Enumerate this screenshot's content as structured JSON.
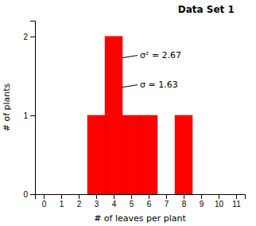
{
  "chart_data": {
    "type": "bar",
    "title": "Data Set 1",
    "x_label": "# of leaves per plant",
    "y_label": "# of plants",
    "x": [
      3,
      4,
      5,
      6,
      8
    ],
    "values": [
      1,
      2,
      1,
      1,
      1
    ],
    "color": "#FF0000",
    "xlim": [
      -0.5,
      11.5
    ],
    "xticks": [
      0,
      1,
      2,
      3,
      4,
      5,
      6,
      7,
      8,
      9,
      10,
      11
    ],
    "ylim": [
      0,
      2.2
    ],
    "yticks": [
      0,
      1,
      2
    ],
    "grid": false,
    "annotations": [
      "σ² = 2.67",
      "σ = 1.63"
    ]
  }
}
